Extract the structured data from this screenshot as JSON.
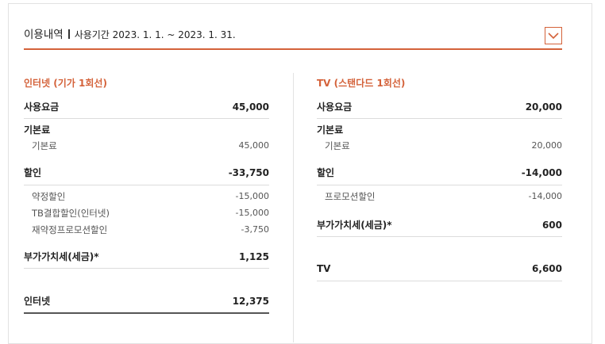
{
  "header": {
    "title": "이용내역",
    "period": "사용기간 2023. 1. 1. ~ 2023. 1. 31."
  },
  "left": {
    "section_title": "인터넷 (기가 1회선)",
    "usage": {
      "label": "사용요금",
      "value": "45,000"
    },
    "basic": {
      "label": "기본료"
    },
    "basic_items": [
      {
        "label": "기본료",
        "value": "45,000"
      }
    ],
    "discount": {
      "label": "할인",
      "value": "-33,750"
    },
    "discount_items": [
      {
        "label": "약정할인",
        "value": "-15,000"
      },
      {
        "label": "TB결합할인(인터넷)",
        "value": "-15,000"
      },
      {
        "label": "재약정프로모션할인",
        "value": "-3,750"
      }
    ],
    "vat": {
      "label": "부가가치세(세금)*",
      "value": "1,125"
    },
    "total": {
      "label": "인터넷",
      "value": "12,375"
    }
  },
  "right": {
    "section_title": "TV (스탠다드 1회선)",
    "usage": {
      "label": "사용요금",
      "value": "20,000"
    },
    "basic": {
      "label": "기본료"
    },
    "basic_items": [
      {
        "label": "기본료",
        "value": "20,000"
      }
    ],
    "discount": {
      "label": "할인",
      "value": "-14,000"
    },
    "discount_items": [
      {
        "label": "프로모션할인",
        "value": "-14,000"
      }
    ],
    "vat": {
      "label": "부가가치세(세금)*",
      "value": "600"
    },
    "total": {
      "label": "TV",
      "value": "6,600"
    }
  },
  "colors": {
    "accent": "#d4623a",
    "text": "#222222",
    "subtext": "#555555",
    "rule": "#dcdcdc"
  },
  "icons": {
    "toggle": "chevron-down-icon"
  }
}
